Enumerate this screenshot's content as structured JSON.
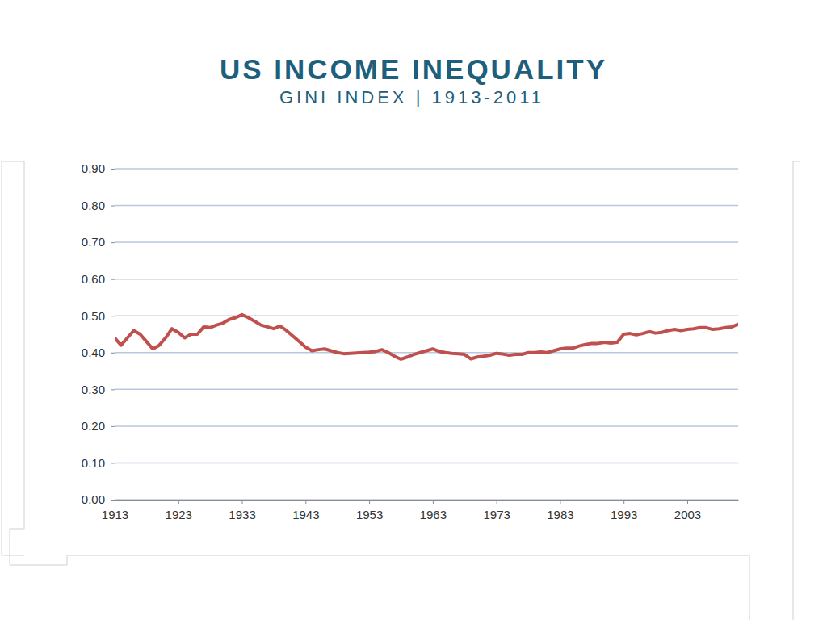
{
  "chart_data": {
    "type": "line",
    "title": "US INCOME INEQUALITY",
    "subtitle": "GINI INDEX | 1913-2011",
    "x": [
      1913,
      1914,
      1915,
      1916,
      1917,
      1918,
      1919,
      1920,
      1921,
      1922,
      1923,
      1924,
      1925,
      1926,
      1927,
      1928,
      1929,
      1930,
      1931,
      1932,
      1933,
      1934,
      1935,
      1936,
      1937,
      1938,
      1939,
      1940,
      1941,
      1942,
      1943,
      1944,
      1945,
      1946,
      1947,
      1948,
      1949,
      1950,
      1951,
      1952,
      1953,
      1954,
      1955,
      1956,
      1957,
      1958,
      1959,
      1960,
      1961,
      1962,
      1963,
      1964,
      1965,
      1966,
      1967,
      1968,
      1969,
      1970,
      1971,
      1972,
      1973,
      1974,
      1975,
      1976,
      1977,
      1978,
      1979,
      1980,
      1981,
      1982,
      1983,
      1984,
      1985,
      1986,
      1987,
      1988,
      1989,
      1990,
      1991,
      1992,
      1993,
      1994,
      1995,
      1996,
      1997,
      1998,
      1999,
      2000,
      2001,
      2002,
      2003,
      2004,
      2005,
      2006,
      2007,
      2008,
      2009,
      2010,
      2011
    ],
    "values": [
      0.44,
      0.42,
      0.44,
      0.46,
      0.45,
      0.43,
      0.41,
      0.42,
      0.44,
      0.465,
      0.455,
      0.44,
      0.45,
      0.45,
      0.47,
      0.468,
      0.475,
      0.48,
      0.49,
      0.495,
      0.503,
      0.495,
      0.485,
      0.475,
      0.47,
      0.465,
      0.472,
      0.46,
      0.445,
      0.43,
      0.415,
      0.405,
      0.408,
      0.41,
      0.405,
      0.4,
      0.397,
      0.398,
      0.399,
      0.4,
      0.401,
      0.403,
      0.408,
      0.4,
      0.39,
      0.382,
      0.388,
      0.395,
      0.4,
      0.405,
      0.41,
      0.403,
      0.4,
      0.398,
      0.397,
      0.395,
      0.383,
      0.388,
      0.39,
      0.393,
      0.398,
      0.396,
      0.393,
      0.395,
      0.395,
      0.4,
      0.4,
      0.402,
      0.4,
      0.405,
      0.41,
      0.412,
      0.412,
      0.418,
      0.422,
      0.425,
      0.425,
      0.428,
      0.426,
      0.428,
      0.45,
      0.452,
      0.448,
      0.452,
      0.457,
      0.453,
      0.455,
      0.46,
      0.463,
      0.46,
      0.463,
      0.465,
      0.468,
      0.468,
      0.463,
      0.465,
      0.468,
      0.47,
      0.477
    ],
    "color": "#c0504d",
    "xlim": [
      1913,
      2011
    ],
    "xticks": [
      1913,
      1923,
      1933,
      1943,
      1953,
      1963,
      1973,
      1983,
      1993,
      2003
    ],
    "ylim": [
      0,
      0.9
    ],
    "yticks": [
      {
        "value": 0,
        "label": "0.00"
      },
      {
        "value": 0.1,
        "label": "0.10"
      },
      {
        "value": 0.2,
        "label": "0.20"
      },
      {
        "value": 0.3,
        "label": "0.30"
      },
      {
        "value": 0.4,
        "label": "0.40"
      },
      {
        "value": 0.5,
        "label": "0.50"
      },
      {
        "value": 0.6,
        "label": "0.60"
      },
      {
        "value": 0.7,
        "label": "0.70"
      },
      {
        "value": 0.8,
        "label": "0.80"
      },
      {
        "value": 0.9,
        "label": "0.90"
      }
    ],
    "grid": true
  }
}
